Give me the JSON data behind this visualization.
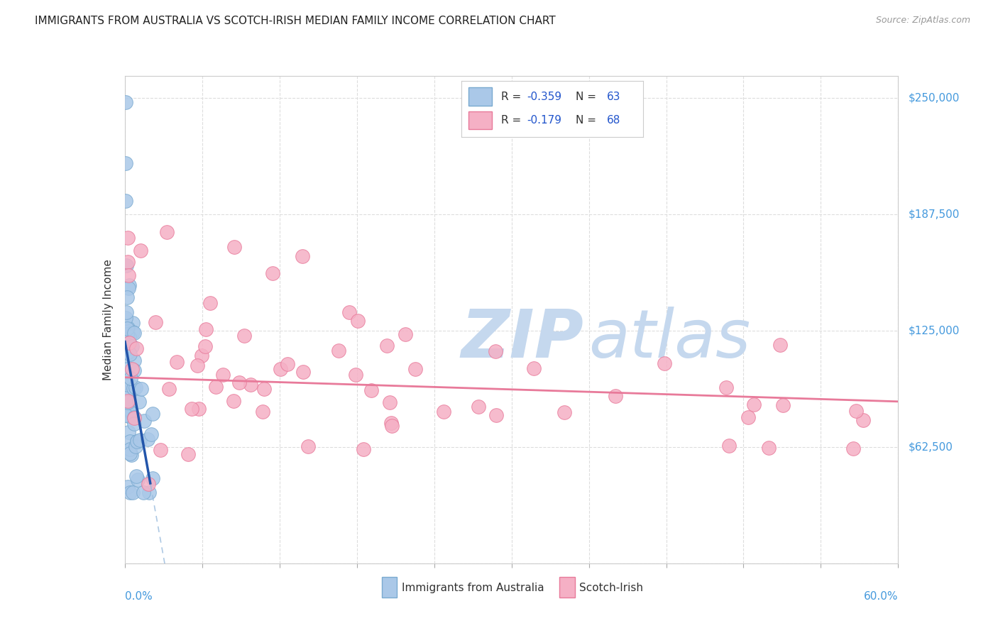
{
  "title": "IMMIGRANTS FROM AUSTRALIA VS SCOTCH-IRISH MEDIAN FAMILY INCOME CORRELATION CHART",
  "source": "Source: ZipAtlas.com",
  "ylabel": "Median Family Income",
  "yticks": [
    0,
    62500,
    125000,
    187500,
    250000
  ],
  "ytick_labels": [
    "",
    "$62,500",
    "$125,000",
    "$187,500",
    "$250,000"
  ],
  "xlim": [
    0.0,
    0.6
  ],
  "ylim": [
    0,
    262000
  ],
  "legend_r1": "-0.359",
  "legend_n1": "63",
  "legend_r2": "-0.179",
  "legend_n2": "68",
  "watermark_zip": "ZIP",
  "watermark_atlas": "atlas",
  "blue_color": "#aac8e8",
  "pink_color": "#f5b0c5",
  "blue_edge": "#7aaad0",
  "pink_edge": "#e87a9a",
  "trend_blue": "#2255aa",
  "trend_pink": "#e87a9a",
  "dash_color": "#99bbdd",
  "bg_color": "#ffffff",
  "grid_color": "#dddddd",
  "r_n_color": "#2255cc",
  "text_color": "#333333",
  "axis_label_color": "#4499dd",
  "source_color": "#999999",
  "title_color": "#222222"
}
